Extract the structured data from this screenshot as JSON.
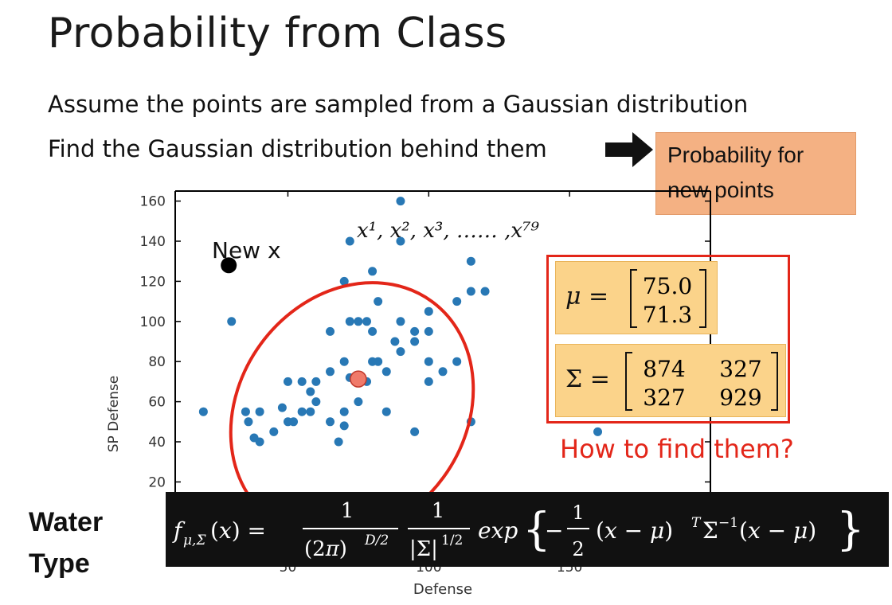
{
  "title": "Probability from Class",
  "bullets": [
    "Assume the points are sampled from a Gaussian distribution",
    "Find the Gaussian distribution behind them"
  ],
  "prob_box": {
    "line1": "Probability for",
    "line2": "new points"
  },
  "annotations": {
    "new_x": "New x",
    "how": "How to find them?",
    "water": "Water",
    "type": "Type"
  },
  "samples_label": "x¹, x², x³, …… ,x⁷⁹",
  "mu": {
    "symbol": "μ =",
    "values": [
      "75.0",
      "71.3"
    ]
  },
  "sigma": {
    "symbol": "Σ =",
    "matrix": [
      [
        "874",
        "327"
      ],
      [
        "327",
        "929"
      ]
    ]
  },
  "formula": "f_{μ,Σ}(x) = 1/(2π)^{D/2} · 1/|Σ|^{1/2} · exp{ −½ (x−μ)ᵀ Σ⁻¹ (x−μ) }",
  "colors": {
    "points": "#2878b5",
    "ellipse": "#e32619",
    "mean_marker": "#f07a6a",
    "prob_box": "#f4b183",
    "param_box": "#fbd38a",
    "formula_bar": "#111111"
  },
  "chart_data": {
    "type": "scatter",
    "xlabel": "Defense",
    "ylabel": "SP Defense",
    "xlim": [
      10,
      200
    ],
    "ylim": [
      15,
      165
    ],
    "xticks": [
      "50",
      "100",
      "150"
    ],
    "yticks": [
      "20",
      "40",
      "60",
      "80",
      "100",
      "120",
      "140",
      "160"
    ],
    "points": [
      [
        20,
        55
      ],
      [
        36,
        50
      ],
      [
        40,
        40
      ],
      [
        45,
        45
      ],
      [
        38,
        42
      ],
      [
        50,
        50
      ],
      [
        52,
        50
      ],
      [
        48,
        57
      ],
      [
        55,
        55
      ],
      [
        58,
        65
      ],
      [
        60,
        70
      ],
      [
        55,
        70
      ],
      [
        65,
        75
      ],
      [
        70,
        80
      ],
      [
        72,
        72
      ],
      [
        65,
        50
      ],
      [
        70,
        48
      ],
      [
        75,
        60
      ],
      [
        80,
        80
      ],
      [
        82,
        80
      ],
      [
        78,
        70
      ],
      [
        85,
        75
      ],
      [
        90,
        85
      ],
      [
        88,
        90
      ],
      [
        90,
        100
      ],
      [
        95,
        90
      ],
      [
        100,
        95
      ],
      [
        95,
        95
      ],
      [
        100,
        105
      ],
      [
        105,
        75
      ],
      [
        110,
        110
      ],
      [
        115,
        115
      ],
      [
        120,
        115
      ],
      [
        115,
        130
      ],
      [
        110,
        80
      ],
      [
        100,
        70
      ],
      [
        95,
        45
      ],
      [
        85,
        55
      ],
      [
        70,
        55
      ],
      [
        68,
        40
      ],
      [
        60,
        60
      ],
      [
        58,
        55
      ],
      [
        50,
        70
      ],
      [
        40,
        55
      ],
      [
        35,
        55
      ],
      [
        30,
        100
      ],
      [
        65,
        95
      ],
      [
        70,
        120
      ],
      [
        72,
        100
      ],
      [
        75,
        100
      ],
      [
        78,
        100
      ],
      [
        80,
        125
      ],
      [
        82,
        110
      ],
      [
        80,
        95
      ],
      [
        90,
        140
      ],
      [
        90,
        160
      ],
      [
        72,
        140
      ],
      [
        100,
        80
      ],
      [
        115,
        50
      ],
      [
        155,
        65
      ],
      [
        160,
        45
      ]
    ],
    "new_point": [
      29,
      128
    ],
    "mean": [
      75.0,
      71.3
    ]
  }
}
